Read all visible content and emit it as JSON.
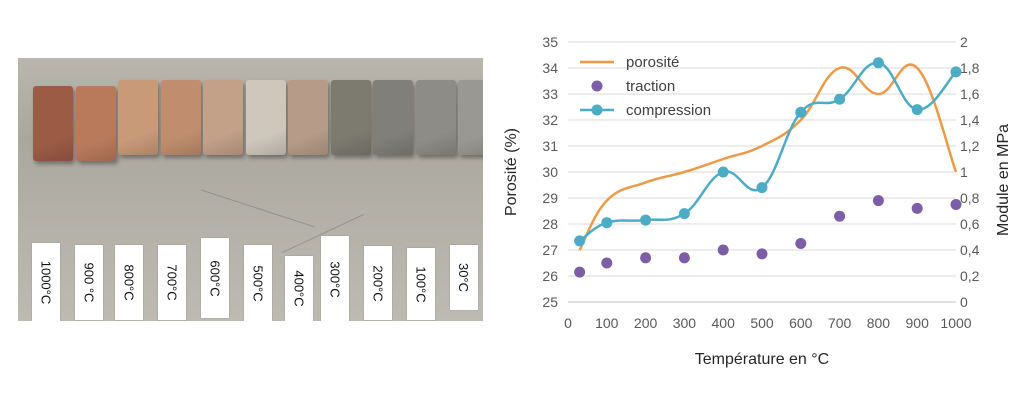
{
  "photo": {
    "labels": [
      "1000°C",
      "900 °C",
      "800°C",
      "700°C",
      "600°C",
      "500°C",
      "400°C",
      "300°C",
      "200°C",
      "100°C",
      "30°C"
    ],
    "brick_colors": [
      "#9c5b45",
      "#b97a5c",
      "#c99a78",
      "#c08e6e",
      "#c3a088",
      "#cfc7bc",
      "#b69c88",
      "#7d7a70",
      "#807f79",
      "#8e8c86",
      "#9a9892"
    ]
  },
  "chart_data": {
    "type": "line",
    "xlabel": "Température en °C",
    "ylabel": "Porosité (%)",
    "y2label": "Module en MPa",
    "xlim": [
      0,
      1000
    ],
    "ylim": [
      25,
      35
    ],
    "y2lim": [
      0,
      2
    ],
    "xticks": [
      "0",
      "100",
      "200",
      "300",
      "400",
      "500",
      "600",
      "700",
      "800",
      "900",
      "1000"
    ],
    "yticks": [
      "25",
      "26",
      "27",
      "28",
      "29",
      "30",
      "31",
      "32",
      "33",
      "34",
      "35"
    ],
    "y2ticks": [
      "0",
      "0,2",
      "0,4",
      "0,6",
      "0,8",
      "1",
      "1,2",
      "1,4",
      "1,6",
      "1,8",
      "2"
    ],
    "legend_position": "top-left",
    "series": [
      {
        "name": "porosité",
        "kind": "smooth-line",
        "axis": "left",
        "color": "#ed9a47",
        "x": [
          30,
          100,
          200,
          300,
          400,
          500,
          600,
          700,
          800,
          900,
          1000
        ],
        "y": [
          27.0,
          28.9,
          29.6,
          30.0,
          30.5,
          31.0,
          32.0,
          34.0,
          33.0,
          34.0,
          30.0
        ]
      },
      {
        "name": "traction",
        "kind": "scatter",
        "axis": "right",
        "color": "#7b5ea6",
        "x": [
          30,
          100,
          200,
          300,
          400,
          500,
          600,
          700,
          800,
          900,
          1000
        ],
        "y": [
          0.23,
          0.3,
          0.34,
          0.34,
          0.4,
          0.37,
          0.45,
          0.66,
          0.78,
          0.72,
          0.75
        ]
      },
      {
        "name": "compression",
        "kind": "line-markers",
        "axis": "right",
        "color": "#4cacc6",
        "x": [
          30,
          100,
          200,
          300,
          400,
          500,
          600,
          700,
          800,
          900,
          1000
        ],
        "y": [
          0.47,
          0.61,
          0.63,
          0.68,
          1.0,
          0.88,
          1.46,
          1.56,
          1.84,
          1.48,
          1.77
        ]
      }
    ]
  }
}
